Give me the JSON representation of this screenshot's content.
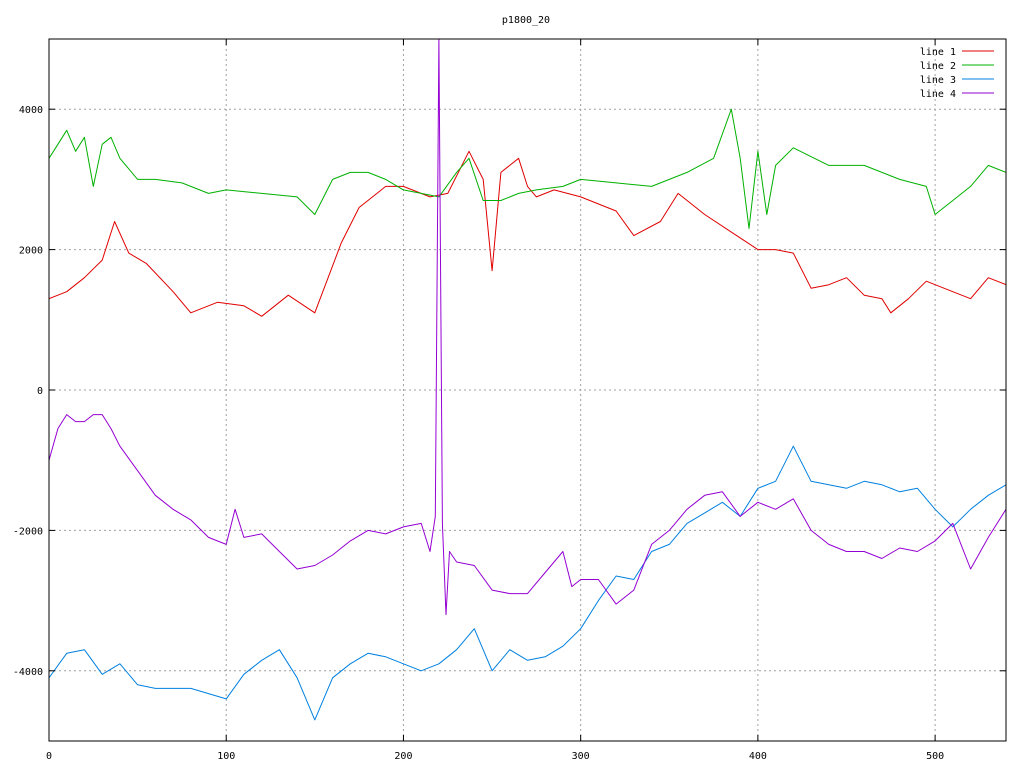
{
  "chart_data": {
    "type": "line",
    "title": "p1800_20",
    "xlabel": "",
    "ylabel": "",
    "xlim": [
      0,
      540
    ],
    "ylim": [
      -5000,
      5000
    ],
    "xticks": [
      0,
      100,
      200,
      300,
      400,
      500
    ],
    "yticks": [
      -4000,
      -2000,
      0,
      2000,
      4000
    ],
    "xtick_labels": [
      "0",
      "100",
      "200",
      "300",
      "400",
      "500"
    ],
    "ytick_labels": [
      "-4000",
      "-2000",
      "0",
      "2000",
      "4000"
    ],
    "grid": true,
    "legend_position": "top-right",
    "series": [
      {
        "name": "line 1",
        "color": "#e00000",
        "x": [
          0,
          10,
          20,
          30,
          37,
          45,
          55,
          70,
          80,
          95,
          110,
          120,
          135,
          150,
          165,
          175,
          190,
          200,
          215,
          225,
          237,
          245,
          250,
          255,
          265,
          270,
          275,
          285,
          300,
          320,
          330,
          345,
          355,
          370,
          385,
          400,
          410,
          420,
          430,
          440,
          450,
          460,
          470,
          475,
          485,
          495,
          510,
          520,
          530,
          540
        ],
        "y": [
          1300,
          1400,
          1600,
          1850,
          2400,
          1950,
          1800,
          1400,
          1100,
          1250,
          1200,
          1050,
          1350,
          1100,
          2100,
          2600,
          2900,
          2900,
          2750,
          2800,
          3400,
          3000,
          1700,
          3100,
          3300,
          2900,
          2750,
          2850,
          2750,
          2550,
          2200,
          2400,
          2800,
          2500,
          2250,
          2000,
          2000,
          1950,
          1450,
          1500,
          1600,
          1350,
          1300,
          1100,
          1300,
          1550,
          1400,
          1300,
          1600,
          1500
        ]
      },
      {
        "name": "line 2",
        "color": "#00b000",
        "x": [
          0,
          5,
          10,
          15,
          20,
          25,
          30,
          35,
          40,
          50,
          60,
          75,
          90,
          100,
          120,
          140,
          150,
          160,
          170,
          180,
          190,
          200,
          210,
          220,
          230,
          237,
          245,
          255,
          265,
          275,
          290,
          300,
          320,
          340,
          360,
          375,
          385,
          390,
          395,
          400,
          405,
          410,
          420,
          440,
          460,
          480,
          495,
          500,
          510,
          520,
          530,
          540
        ],
        "y": [
          3300,
          3500,
          3700,
          3400,
          3600,
          2900,
          3500,
          3600,
          3300,
          3000,
          3000,
          2950,
          2800,
          2850,
          2800,
          2750,
          2500,
          3000,
          3100,
          3100,
          3000,
          2850,
          2800,
          2750,
          3100,
          3300,
          2700,
          2700,
          2800,
          2850,
          2900,
          3000,
          2950,
          2900,
          3100,
          3300,
          4000,
          3300,
          2300,
          3400,
          2500,
          3200,
          3450,
          3200,
          3200,
          3000,
          2900,
          2500,
          2700,
          2900,
          3200,
          3100
        ]
      },
      {
        "name": "line 3",
        "color": "#0080e0",
        "x": [
          0,
          10,
          20,
          30,
          40,
          50,
          60,
          80,
          100,
          110,
          120,
          130,
          140,
          150,
          160,
          170,
          180,
          190,
          200,
          210,
          220,
          230,
          240,
          250,
          260,
          270,
          280,
          290,
          300,
          310,
          320,
          330,
          340,
          350,
          360,
          370,
          380,
          390,
          400,
          410,
          420,
          430,
          440,
          450,
          460,
          470,
          480,
          490,
          500,
          510,
          520,
          530,
          540
        ],
        "y": [
          -4100,
          -3750,
          -3700,
          -4050,
          -3900,
          -4200,
          -4250,
          -4250,
          -4400,
          -4050,
          -3850,
          -3700,
          -4100,
          -4700,
          -4100,
          -3900,
          -3750,
          -3800,
          -3900,
          -4000,
          -3900,
          -3700,
          -3400,
          -4000,
          -3700,
          -3850,
          -3800,
          -3650,
          -3400,
          -3000,
          -2650,
          -2700,
          -2300,
          -2200,
          -1900,
          -1750,
          -1600,
          -1800,
          -1400,
          -1300,
          -800,
          -1300,
          -1350,
          -1400,
          -1300,
          -1350,
          -1450,
          -1400,
          -1700,
          -1950,
          -1700,
          -1500,
          -1350
        ]
      },
      {
        "name": "line 4",
        "color": "#9500d3",
        "x": [
          0,
          5,
          10,
          15,
          20,
          25,
          30,
          35,
          40,
          50,
          60,
          70,
          80,
          90,
          100,
          105,
          110,
          120,
          130,
          140,
          150,
          160,
          170,
          180,
          190,
          200,
          210,
          215,
          218,
          220,
          222,
          224,
          226,
          230,
          240,
          250,
          260,
          270,
          280,
          290,
          295,
          300,
          310,
          320,
          330,
          340,
          350,
          360,
          370,
          380,
          390,
          400,
          410,
          420,
          430,
          440,
          450,
          460,
          470,
          480,
          490,
          500,
          510,
          520,
          530,
          540
        ],
        "y": [
          -1000,
          -550,
          -350,
          -450,
          -450,
          -350,
          -350,
          -550,
          -800,
          -1150,
          -1500,
          -1700,
          -1850,
          -2100,
          -2200,
          -1700,
          -2100,
          -2050,
          -2300,
          -2550,
          -2500,
          -2350,
          -2150,
          -2000,
          -2050,
          -1950,
          -1900,
          -2300,
          -1800,
          5000,
          -1900,
          -3200,
          -2300,
          -2450,
          -2500,
          -2850,
          -2900,
          -2900,
          -2600,
          -2300,
          -2800,
          -2700,
          -2700,
          -3050,
          -2850,
          -2200,
          -2000,
          -1700,
          -1500,
          -1450,
          -1800,
          -1600,
          -1700,
          -1550,
          -2000,
          -2200,
          -2300,
          -2300,
          -2400,
          -2250,
          -2300,
          -2150,
          -1900,
          -2550,
          -2100,
          -1700
        ]
      }
    ]
  }
}
